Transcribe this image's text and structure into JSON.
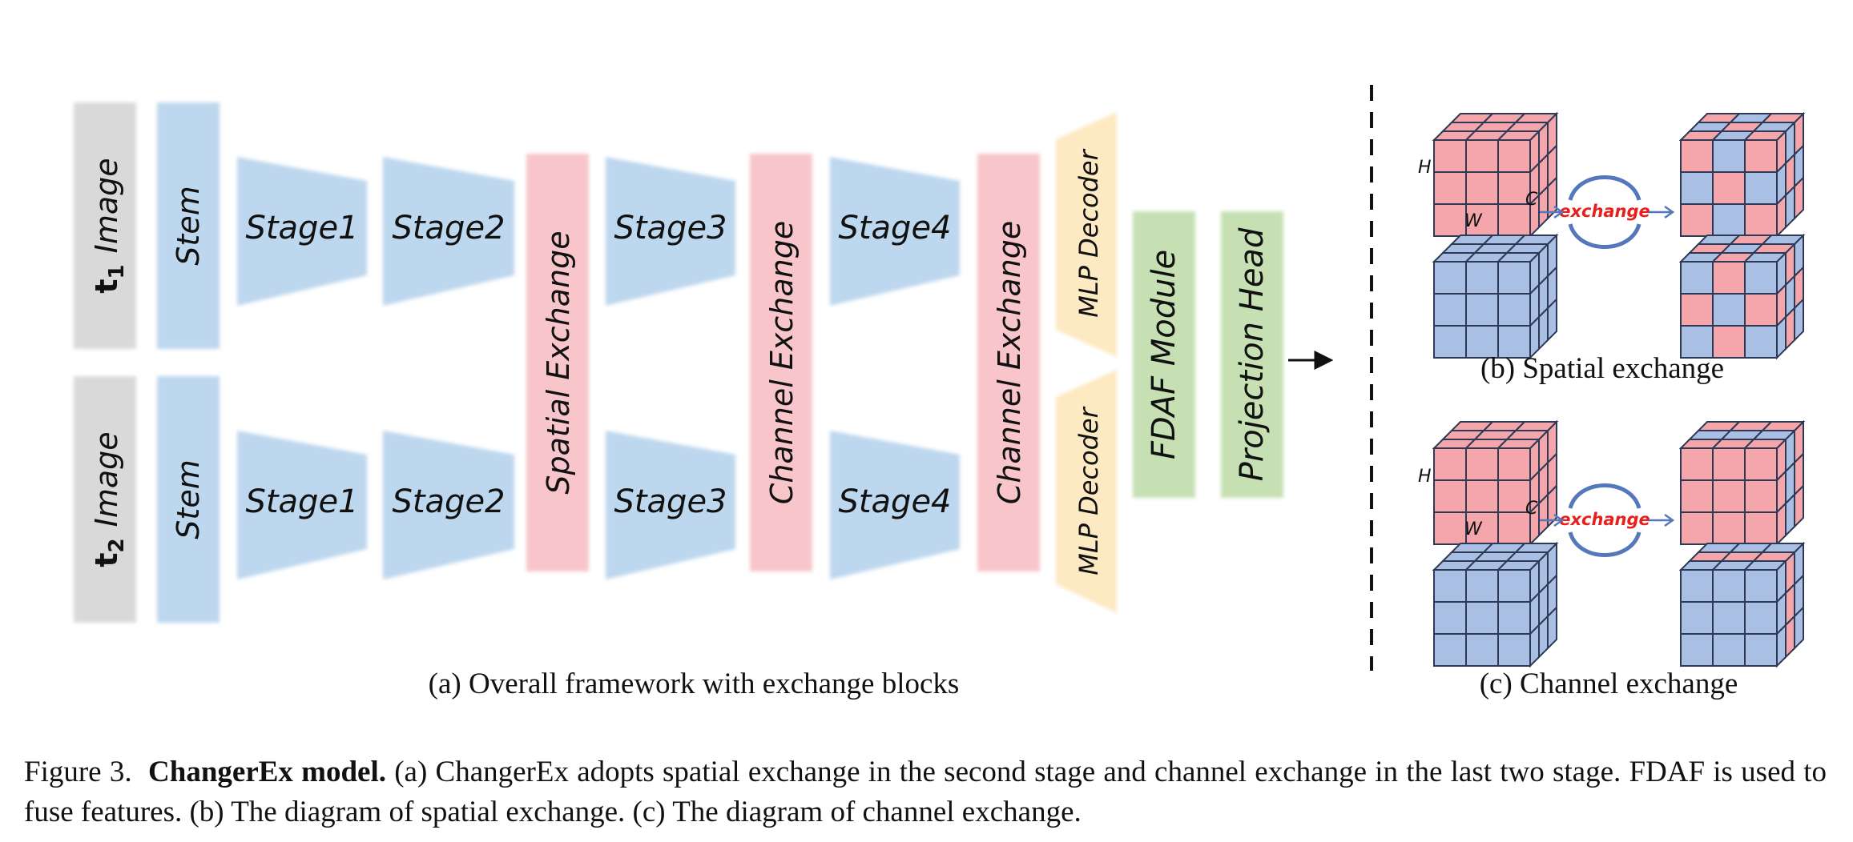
{
  "panel_a": {
    "inputs": [
      {
        "sym": "t",
        "sub": "1",
        "word": "Image"
      },
      {
        "sym": "t",
        "sub": "2",
        "word": "Image"
      }
    ],
    "stem": "Stem",
    "stages": [
      "Stage1",
      "Stage2",
      "Stage3",
      "Stage4"
    ],
    "spatial_exchange": "Spatial Exchange",
    "channel_exchange": "Channel Exchange",
    "mlp_decoder": "MLP Decoder",
    "fdaf": "FDAF Module",
    "projection_head": "Projection Head",
    "caption": "(a) Overall framework with exchange blocks"
  },
  "panel_b": {
    "caption": "(b) Spatial exchange",
    "exchange_label": "exchange",
    "dims": {
      "h": "H",
      "w": "W",
      "c": "C"
    }
  },
  "panel_c": {
    "caption": "(c) Channel exchange",
    "exchange_label": "exchange",
    "dims": {
      "h": "H",
      "w": "W",
      "c": "C"
    }
  },
  "figure_caption": {
    "prefix": "Figure 3.",
    "title": "ChangerEx model.",
    "body": " (a) ChangerEx adopts spatial exchange in the second stage and channel exchange in the last two stage. FDAF is used to fuse features. (b) The diagram of spatial exchange. (c) The diagram of channel exchange."
  },
  "colors": {
    "gray": "#d9d9d9",
    "blue": "#bdd7ee",
    "pink": "#f8c6ca",
    "yellow": "#fde9c2",
    "green": "#c6e0b4",
    "cube_red": "#f4a6ab",
    "cube_blue": "#a9bfe4",
    "exchange_text": "#e8201d",
    "arrow_blue": "#5577bb"
  }
}
